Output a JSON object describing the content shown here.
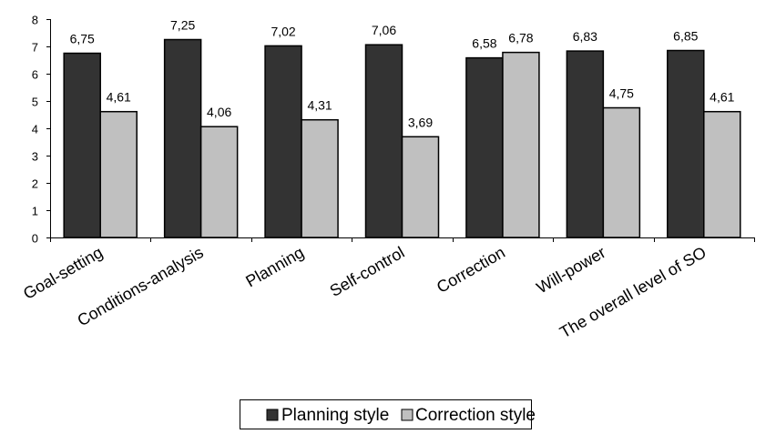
{
  "chart_data": {
    "type": "bar",
    "title": "",
    "xlabel": "",
    "ylabel": "",
    "ylim": [
      0,
      8
    ],
    "yticks": [
      0,
      1,
      2,
      3,
      4,
      5,
      6,
      7,
      8
    ],
    "grid": false,
    "legend_position": "bottom",
    "categories": [
      "Goal-setting",
      "Conditions-analysis",
      "Planning",
      "Self-control",
      "Correction",
      "Will-power",
      "The overall level of SO"
    ],
    "series": [
      {
        "name": "Planning style",
        "color": "#333333",
        "values": [
          6.75,
          7.25,
          7.02,
          7.06,
          6.58,
          6.83,
          6.85
        ],
        "labels": [
          "6,75",
          "7,25",
          "7,02",
          "7,06",
          "6,58",
          "6,83",
          "6,85"
        ]
      },
      {
        "name": "Correction style",
        "color": "#c0c0c0",
        "values": [
          4.61,
          4.06,
          4.31,
          3.69,
          6.78,
          4.75,
          4.61
        ],
        "labels": [
          "4,61",
          "4,06",
          "4,31",
          "3,69",
          "6,78",
          "4,75",
          "4,61"
        ]
      }
    ]
  }
}
